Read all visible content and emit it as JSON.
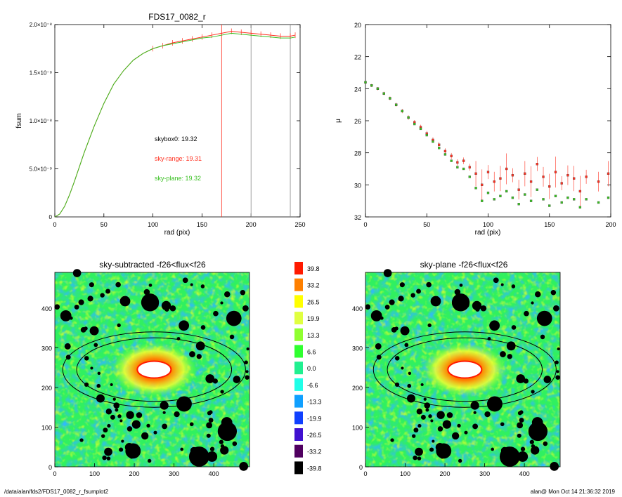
{
  "footer": {
    "path": "/data/alan/fds2/FDS17_0082_r_fsumplot2",
    "stamp": "alan@  Mon Oct 14 21:36:32 2019"
  },
  "colors": {
    "red": "#ff3020",
    "green": "#38c020",
    "dark": "#000000"
  },
  "chart_data": [
    {
      "type": "line",
      "title": "FDS17_0082_r",
      "xlabel": "rad (pix)",
      "ylabel": "fsum",
      "xlim": [
        0,
        250
      ],
      "ylim": [
        0,
        2e-08
      ],
      "xticks": [
        "0",
        "50",
        "100",
        "150",
        "200",
        "250"
      ],
      "yticks": [
        "0",
        "5.0×10⁻⁹",
        "1.0×10⁻⁸",
        "1.5×10⁻⁸",
        "2.0×10⁻⁸"
      ],
      "vlines": [
        170,
        200,
        240
      ],
      "annotations": [
        {
          "text": "skybox0: 19.32",
          "color": "#000000"
        },
        {
          "text": "sky-range: 19.31",
          "color": "#ff3020"
        },
        {
          "text": "sky-plane: 19.32",
          "color": "#38c020"
        }
      ],
      "series": [
        {
          "color": "#ff3020",
          "x": [
            0,
            5,
            10,
            15,
            20,
            30,
            40,
            50,
            60,
            70,
            80,
            90,
            100,
            110,
            120,
            130,
            140,
            150,
            160,
            170,
            180,
            190,
            200,
            210,
            220,
            230,
            240,
            245
          ],
          "y": [
            0,
            3e-10,
            1.1e-09,
            2.3e-09,
            3.7e-09,
            6.7e-09,
            9.4e-09,
            1.18e-08,
            1.38e-08,
            1.52e-08,
            1.63e-08,
            1.7e-08,
            1.75e-08,
            1.78e-08,
            1.81e-08,
            1.83e-08,
            1.85e-08,
            1.87e-08,
            1.89e-08,
            1.91e-08,
            1.93e-08,
            1.92e-08,
            1.91e-08,
            1.9e-08,
            1.89e-08,
            1.88e-08,
            1.88e-08,
            1.89e-08
          ]
        },
        {
          "color": "#38c020",
          "x": [
            0,
            5,
            10,
            15,
            20,
            30,
            40,
            50,
            60,
            70,
            80,
            90,
            100,
            110,
            120,
            130,
            140,
            150,
            160,
            170,
            180,
            190,
            200,
            210,
            220,
            230,
            240,
            245
          ],
          "y": [
            0,
            3e-10,
            1.1e-09,
            2.3e-09,
            3.7e-09,
            6.7e-09,
            9.4e-09,
            1.18e-08,
            1.38e-08,
            1.52e-08,
            1.63e-08,
            1.7e-08,
            1.75e-08,
            1.78e-08,
            1.8e-08,
            1.82e-08,
            1.84e-08,
            1.86e-08,
            1.87e-08,
            1.89e-08,
            1.91e-08,
            1.9e-08,
            1.89e-08,
            1.88e-08,
            1.87e-08,
            1.86e-08,
            1.86e-08,
            1.87e-08
          ]
        }
      ]
    },
    {
      "type": "scatter",
      "title": "",
      "xlabel": "rad (pix)",
      "ylabel": "μ",
      "xlim": [
        0,
        200
      ],
      "ylim": [
        32,
        20
      ],
      "xticks": [
        "0",
        "50",
        "100",
        "150",
        "200"
      ],
      "yticks": [
        "20",
        "22",
        "24",
        "26",
        "28",
        "30",
        "32"
      ],
      "series": [
        {
          "color": "#ff3020",
          "x": [
            0,
            5,
            10,
            15,
            20,
            25,
            30,
            35,
            40,
            45,
            50,
            55,
            60,
            65,
            70,
            75,
            80,
            85,
            90,
            95,
            100,
            105,
            110,
            115,
            120,
            125,
            130,
            135,
            140,
            145,
            150,
            155,
            160,
            165,
            170,
            175,
            180,
            190,
            198
          ],
          "y": [
            23.6,
            23.8,
            24.0,
            24.3,
            24.6,
            25.0,
            25.4,
            25.8,
            26.1,
            26.4,
            26.8,
            27.2,
            27.5,
            27.9,
            28.2,
            28.6,
            28.5,
            28.9,
            29.3,
            30.0,
            29.2,
            29.8,
            29.6,
            29.0,
            29.4,
            30.3,
            29.3,
            29.8,
            28.7,
            29.5,
            30.1,
            29.2,
            29.9,
            29.4,
            29.6,
            30.4,
            29.5,
            29.8,
            29.3
          ]
        },
        {
          "color": "#38c020",
          "x": [
            0,
            5,
            10,
            15,
            20,
            25,
            30,
            35,
            40,
            45,
            50,
            55,
            60,
            65,
            70,
            75,
            80,
            85,
            90,
            95,
            100,
            105,
            110,
            115,
            120,
            125,
            130,
            135,
            140,
            145,
            150,
            155,
            160,
            165,
            170,
            175,
            180,
            190,
            198
          ],
          "y": [
            23.6,
            23.8,
            24.0,
            24.3,
            24.6,
            25.0,
            25.4,
            25.8,
            26.2,
            26.5,
            26.9,
            27.3,
            27.7,
            28.1,
            28.5,
            28.9,
            29.0,
            29.5,
            30.2,
            31.0,
            30.5,
            30.9,
            30.7,
            30.4,
            30.8,
            31.2,
            30.6,
            31.0,
            30.3,
            30.9,
            31.3,
            30.7,
            31.1,
            30.8,
            30.9,
            31.4,
            30.9,
            31.1,
            30.8
          ]
        }
      ]
    },
    {
      "type": "heatmap",
      "title": "sky-subtracted -f26<flux<f26",
      "xlim": [
        0,
        490
      ],
      "ylim": [
        0,
        490
      ],
      "xticks": [
        "0",
        "100",
        "200",
        "300",
        "400"
      ],
      "yticks": [
        "0",
        "100",
        "200",
        "300",
        "400"
      ],
      "center": [
        250,
        245
      ],
      "ellipses": [
        {
          "a": 230,
          "b": 95
        },
        {
          "a": 195,
          "b": 80
        }
      ]
    },
    {
      "type": "heatmap",
      "title": "sky-plane -f26<flux<f26",
      "xlim": [
        0,
        490
      ],
      "ylim": [
        0,
        490
      ],
      "xticks": [
        "0",
        "100",
        "200",
        "300",
        "400"
      ],
      "yticks": [
        "0",
        "100",
        "200",
        "300",
        "400"
      ],
      "center": [
        250,
        245
      ],
      "ellipses": [
        {
          "a": 230,
          "b": 95
        },
        {
          "a": 195,
          "b": 80
        }
      ]
    },
    {
      "type": "table",
      "title": "",
      "levels": [
        {
          "label": "39.8",
          "color": "#ff1a00"
        },
        {
          "label": "33.2",
          "color": "#ff8000"
        },
        {
          "label": "26.5",
          "color": "#ffff00"
        },
        {
          "label": "19.9",
          "color": "#e0ff40"
        },
        {
          "label": "13.3",
          "color": "#90ff30"
        },
        {
          "label": "6.6",
          "color": "#30ff30"
        },
        {
          "label": "0.0",
          "color": "#20f090"
        },
        {
          "label": "-6.6",
          "color": "#20ffe8"
        },
        {
          "label": "-13.3",
          "color": "#10a0ff"
        },
        {
          "label": "-19.9",
          "color": "#1040ff"
        },
        {
          "label": "-26.5",
          "color": "#4010d0"
        },
        {
          "label": "-33.2",
          "color": "#500060"
        },
        {
          "label": "-39.8",
          "color": "#000000"
        }
      ]
    }
  ]
}
